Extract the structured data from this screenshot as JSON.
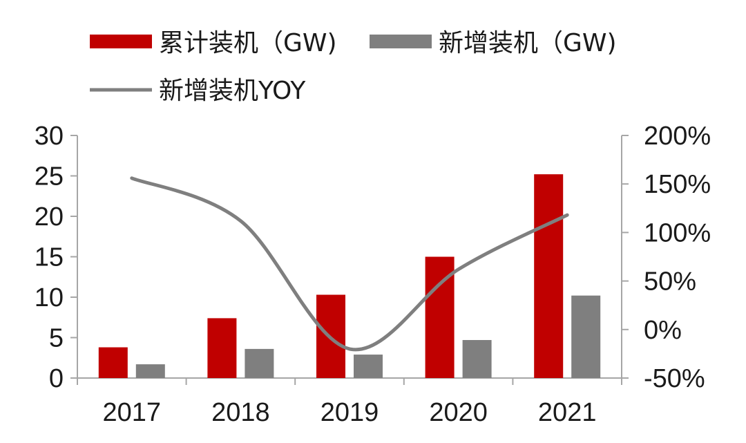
{
  "chart_data": {
    "type": "bar",
    "categories": [
      "2017",
      "2018",
      "2019",
      "2020",
      "2021"
    ],
    "series": [
      {
        "name": "累计装机（GW)",
        "type": "bar",
        "axis": "left",
        "color": "#c00000",
        "values": [
          3.8,
          7.4,
          10.3,
          15.0,
          25.2
        ]
      },
      {
        "name": "新增装机（GW)",
        "type": "bar",
        "axis": "left",
        "color": "#7f7f7f",
        "values": [
          1.7,
          3.6,
          2.9,
          4.7,
          10.2
        ]
      },
      {
        "name": "新增装机YOY",
        "type": "line",
        "axis": "right",
        "color": "#7f7f7f",
        "values": [
          156,
          112,
          -20,
          62,
          118
        ]
      }
    ],
    "y_left": {
      "min": 0,
      "max": 30,
      "ticks": [
        "0",
        "5",
        "10",
        "15",
        "20",
        "25",
        "30"
      ]
    },
    "y_right": {
      "min": -50,
      "max": 200,
      "ticks": [
        "-50%",
        "0%",
        "50%",
        "100%",
        "150%",
        "200%"
      ]
    },
    "legend_position": "top",
    "grid": false
  }
}
